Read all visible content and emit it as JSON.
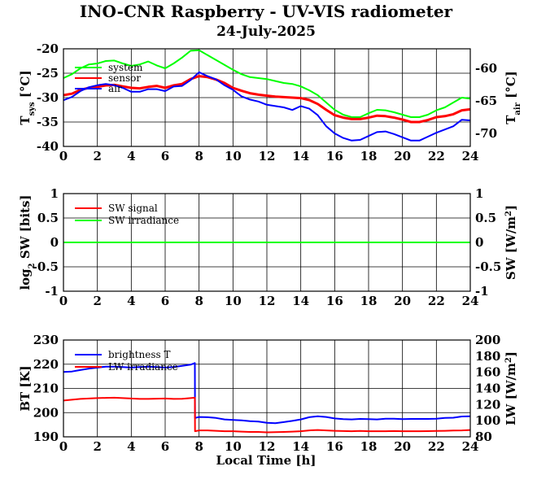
{
  "figure": {
    "title": "INO-CNR Raspberry - UV-VIS radiometer",
    "date": "24-July-2025",
    "xlabel": "Local Time [h]"
  },
  "chart_data": [
    {
      "type": "line",
      "name": "temperatures",
      "xlim": [
        0,
        24
      ],
      "x_ticks": [
        "0",
        "2",
        "4",
        "6",
        "8",
        "10",
        "12",
        "14",
        "16",
        "18",
        "20",
        "22",
        "24"
      ],
      "ylim_left": [
        -40,
        -20
      ],
      "y_ticks_left": [
        "-40",
        "-35",
        "-30",
        "-25",
        "-20"
      ],
      "ylabel_left": "T",
      "ylabel_left_sub": "sys",
      "ylabel_left_unit": "[°C]",
      "ylim_right": [
        -72,
        -57
      ],
      "y_ticks_right": [
        "-70",
        "-65",
        "-60"
      ],
      "ylabel_right": "T",
      "ylabel_right_sub": "air",
      "ylabel_right_unit": "[°C]",
      "grid": true,
      "legend_position": "top-left",
      "series": [
        {
          "name": "system",
          "color": "#00ff00",
          "axis": "left",
          "x": [
            0,
            0.5,
            1,
            1.5,
            2,
            2.5,
            3,
            3.5,
            4,
            4.5,
            5,
            5.5,
            6,
            6.5,
            7,
            7.5,
            8,
            8.5,
            9,
            9.5,
            10,
            10.5,
            11,
            11.5,
            12,
            12.5,
            13,
            13.5,
            14,
            14.5,
            15,
            15.5,
            16,
            16.5,
            17,
            17.5,
            18,
            18.5,
            19,
            19.5,
            20,
            20.5,
            21,
            21.5,
            22,
            22.5,
            23,
            23.5,
            24
          ],
          "y": [
            -26,
            -25.2,
            -24,
            -23.2,
            -23,
            -22.5,
            -22.4,
            -23,
            -23.5,
            -23.2,
            -22.6,
            -23.4,
            -24,
            -23,
            -21.8,
            -20.4,
            -20.3,
            -21.3,
            -22.3,
            -23.3,
            -24.3,
            -25.2,
            -25.8,
            -26,
            -26.2,
            -26.6,
            -27,
            -27.2,
            -27.7,
            -28.5,
            -29.5,
            -31,
            -32.5,
            -33.5,
            -34,
            -34,
            -33.2,
            -32.5,
            -32.6,
            -33,
            -33.5,
            -34,
            -34,
            -33.5,
            -32.6,
            -32,
            -31,
            -30,
            -30.2
          ]
        },
        {
          "name": "sensor",
          "color": "#ff0000",
          "axis": "left",
          "x": [
            0,
            0.5,
            1,
            1.5,
            2,
            2.5,
            3,
            3.5,
            4,
            4.5,
            5,
            5.5,
            6,
            6.5,
            7,
            7.5,
            8,
            8.5,
            9,
            9.5,
            10,
            10.5,
            11,
            11.5,
            12,
            12.5,
            13,
            13.5,
            14,
            14.5,
            15,
            15.5,
            16,
            16.5,
            17,
            17.5,
            18,
            18.5,
            19,
            19.5,
            20,
            20.5,
            21,
            21.5,
            22,
            22.5,
            23,
            23.5,
            24
          ],
          "y": [
            -29.5,
            -29.2,
            -28.4,
            -28,
            -27.8,
            -27.5,
            -27.4,
            -27.7,
            -28,
            -28.1,
            -27.8,
            -27.6,
            -28,
            -27.5,
            -27.2,
            -26.2,
            -25.6,
            -25.8,
            -26.3,
            -27,
            -28,
            -28.6,
            -29.1,
            -29.4,
            -29.6,
            -29.8,
            -29.9,
            -30,
            -30.1,
            -30.5,
            -31.3,
            -32.5,
            -33.6,
            -34.1,
            -34.4,
            -34.4,
            -34.1,
            -33.7,
            -33.8,
            -34.1,
            -34.5,
            -35,
            -35,
            -34.6,
            -34,
            -33.8,
            -33.4,
            -32.6,
            -32.4
          ]
        },
        {
          "name": "air",
          "color": "#0000ff",
          "axis": "right",
          "x": [
            0,
            0.5,
            1,
            1.5,
            2,
            2.5,
            3,
            3.5,
            4,
            4.5,
            5,
            5.5,
            6,
            6.5,
            7,
            7.5,
            8,
            8.5,
            9,
            9.5,
            10,
            10.5,
            11,
            11.5,
            12,
            12.5,
            13,
            13.5,
            14,
            14.5,
            15,
            15.5,
            16,
            16.5,
            17,
            17.5,
            18,
            18.5,
            19,
            19.5,
            20,
            20.5,
            21,
            21.5,
            22,
            22.5,
            23,
            23.5,
            24
          ],
          "y": [
            -64.9,
            -64.4,
            -63.5,
            -62.9,
            -62.6,
            -62.4,
            -62.6,
            -63,
            -63.6,
            -63.6,
            -63.2,
            -63.2,
            -63.5,
            -62.8,
            -62.7,
            -61.8,
            -60.6,
            -61.2,
            -61.7,
            -62.6,
            -63.3,
            -64.3,
            -64.8,
            -65.1,
            -65.6,
            -65.8,
            -66,
            -66.4,
            -65.8,
            -66.2,
            -67.2,
            -68.9,
            -70,
            -70.7,
            -71.1,
            -71,
            -70.4,
            -69.8,
            -69.7,
            -70.1,
            -70.6,
            -71.1,
            -71.1,
            -70.5,
            -69.9,
            -69.4,
            -68.9,
            -67.9,
            -68
          ]
        }
      ]
    },
    {
      "type": "line",
      "name": "shortwave",
      "xlim": [
        0,
        24
      ],
      "x_ticks": [
        "0",
        "2",
        "4",
        "6",
        "8",
        "10",
        "12",
        "14",
        "16",
        "18",
        "20",
        "22",
        "24"
      ],
      "ylim_left": [
        -1,
        1
      ],
      "y_ticks_left": [
        "-1",
        "-0.5",
        "0",
        "0.5",
        "1"
      ],
      "ylabel_left_prefix": "log",
      "ylabel_left_sub": "2",
      "ylabel_left": "SW [bits]",
      "ylim_right": [
        -1,
        1
      ],
      "y_ticks_right": [
        "-1",
        "-0.5",
        "0",
        "0.5",
        "1"
      ],
      "ylabel_right": "SW [W/m",
      "ylabel_right_sup": "2",
      "ylabel_right_end": "]",
      "grid": true,
      "legend_position": "top-left",
      "series": [
        {
          "name": "SW signal",
          "color": "#ff0000",
          "axis": "left",
          "x": [
            0,
            24
          ],
          "y": [
            0,
            0
          ]
        },
        {
          "name": "SW irradiance",
          "color": "#00ff00",
          "axis": "right",
          "x": [
            0,
            24
          ],
          "y": [
            0,
            0
          ]
        }
      ]
    },
    {
      "type": "line",
      "name": "longwave",
      "xlim": [
        0,
        24
      ],
      "x_ticks": [
        "0",
        "2",
        "4",
        "6",
        "8",
        "10",
        "12",
        "14",
        "16",
        "18",
        "20",
        "22",
        "24"
      ],
      "ylim_left": [
        190,
        230
      ],
      "y_ticks_left": [
        "190",
        "200",
        "210",
        "220",
        "230"
      ],
      "ylabel_left": "BT [K]",
      "ylim_right": [
        80,
        200
      ],
      "y_ticks_right": [
        "80",
        "100",
        "120",
        "140",
        "160",
        "180",
        "200"
      ],
      "ylabel_right": "LW [W/m",
      "ylabel_right_sup": "2",
      "ylabel_right_end": "]",
      "grid": true,
      "legend_position": "top-left",
      "series": [
        {
          "name": "brightness T",
          "color": "#0000ff",
          "axis": "left",
          "x": [
            0,
            0.5,
            1,
            1.5,
            2,
            2.5,
            3,
            3.5,
            4,
            4.5,
            5,
            5.5,
            6,
            6.5,
            7,
            7.5,
            7.75,
            7.76,
            8,
            8.5,
            9,
            9.5,
            10,
            10.5,
            11,
            11.5,
            12,
            12.5,
            13,
            13.5,
            14,
            14.5,
            15,
            15.5,
            16,
            16.5,
            17,
            17.5,
            18,
            18.5,
            19,
            19.5,
            20,
            20.5,
            21,
            21.5,
            22,
            22.5,
            23,
            23.5,
            24
          ],
          "y": [
            216.8,
            217,
            217.6,
            218.2,
            218.6,
            219,
            219,
            218.8,
            218.6,
            218.8,
            219,
            218.8,
            218.6,
            218.8,
            219.3,
            219.8,
            220.5,
            197.8,
            198.2,
            198.1,
            197.8,
            197.2,
            197,
            196.8,
            196.5,
            196.3,
            195.8,
            195.6,
            196.1,
            196.6,
            197.2,
            198.1,
            198.5,
            198.2,
            197.6,
            197.3,
            197.2,
            197.4,
            197.3,
            197.2,
            197.5,
            197.5,
            197.3,
            197.4,
            197.4,
            197.4,
            197.5,
            197.8,
            197.9,
            198.4,
            198.5
          ]
        },
        {
          "name": "LW irradiance",
          "color": "#ff0000",
          "axis": "right",
          "x": [
            0,
            0.5,
            1,
            1.5,
            2,
            2.5,
            3,
            3.5,
            4,
            4.5,
            5,
            5.5,
            6,
            6.5,
            7,
            7.5,
            7.75,
            7.76,
            8,
            8.5,
            9,
            9.5,
            10,
            10.5,
            11,
            11.5,
            12,
            12.5,
            13,
            13.5,
            14,
            14.5,
            15,
            15.5,
            16,
            16.5,
            17,
            17.5,
            18,
            18.5,
            19,
            19.5,
            20,
            20.5,
            21,
            21.5,
            22,
            22.5,
            23,
            23.5,
            24
          ],
          "y": [
            125,
            126,
            127,
            127.5,
            128,
            128.3,
            128.5,
            128,
            127.5,
            127,
            127,
            127.3,
            127.5,
            127,
            127.2,
            128,
            128.5,
            87,
            88,
            88,
            87.5,
            87,
            87,
            86.5,
            86,
            86,
            85.5,
            85.8,
            86,
            86.5,
            87,
            88,
            88.5,
            88,
            87.5,
            87.2,
            87,
            87.3,
            87,
            87,
            87,
            87.2,
            87,
            87,
            87,
            87.1,
            87.3,
            87.5,
            87.8,
            88,
            88.5
          ]
        }
      ]
    }
  ]
}
